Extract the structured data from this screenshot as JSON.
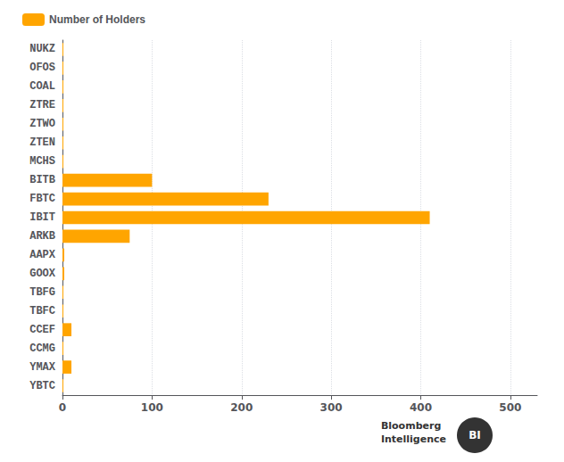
{
  "chart_data": {
    "type": "bar",
    "orientation": "horizontal",
    "categories": [
      "NUKZ",
      "OFOS",
      "COAL",
      "ZTRE",
      "ZTWO",
      "ZTEN",
      "MCHS",
      "BITB",
      "FBTC",
      "IBIT",
      "ARKB",
      "AAPX",
      "GOOX",
      "TBFG",
      "TBFC",
      "CCEF",
      "CCMG",
      "YMAX",
      "YBTC"
    ],
    "series": [
      {
        "name": "Number of Holders",
        "color": "#FFA500",
        "values": [
          1,
          1,
          1,
          1,
          1,
          1,
          1,
          100,
          230,
          410,
          75,
          2,
          2,
          1,
          1,
          10,
          1,
          10,
          1
        ]
      }
    ],
    "xlim": [
      0,
      530
    ],
    "xticks": [
      0,
      100,
      200,
      300,
      400,
      500
    ],
    "grid": true,
    "legend": "top-left",
    "annotations": [
      "Bloomberg",
      "Intelligence",
      "BI"
    ]
  }
}
